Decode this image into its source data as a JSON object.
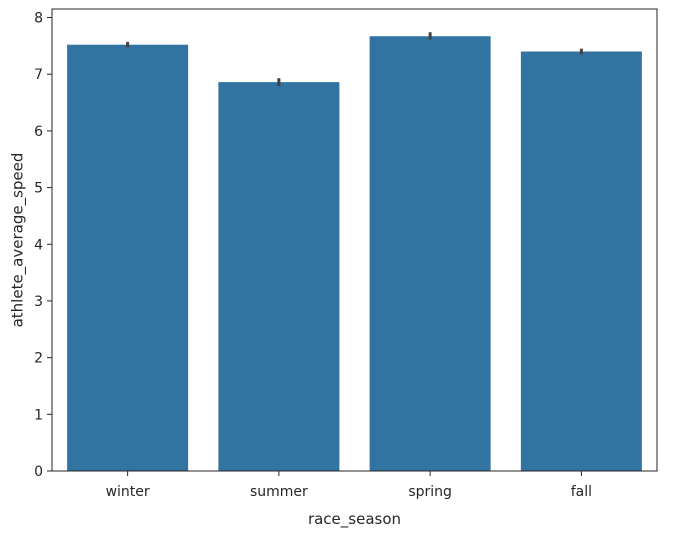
{
  "chart_data": {
    "type": "bar",
    "title": "",
    "xlabel": "race_season",
    "ylabel": "athlete_average_speed",
    "categories": [
      "winter",
      "summer",
      "spring",
      "fall"
    ],
    "values": [
      7.52,
      6.86,
      7.67,
      7.4
    ],
    "error_bars": [
      {
        "low": 7.47,
        "high": 7.57
      },
      {
        "low": 6.79,
        "high": 6.93
      },
      {
        "low": 7.61,
        "high": 7.74
      },
      {
        "low": 7.35,
        "high": 7.45
      }
    ],
    "ylim": [
      0,
      8.15
    ],
    "yticks": [
      0,
      1,
      2,
      3,
      4,
      5,
      6,
      7,
      8
    ],
    "grid": false,
    "legend": null,
    "colors": {
      "bar": "#3274a1",
      "error_bar": "#424242",
      "axis": "#262626"
    }
  }
}
